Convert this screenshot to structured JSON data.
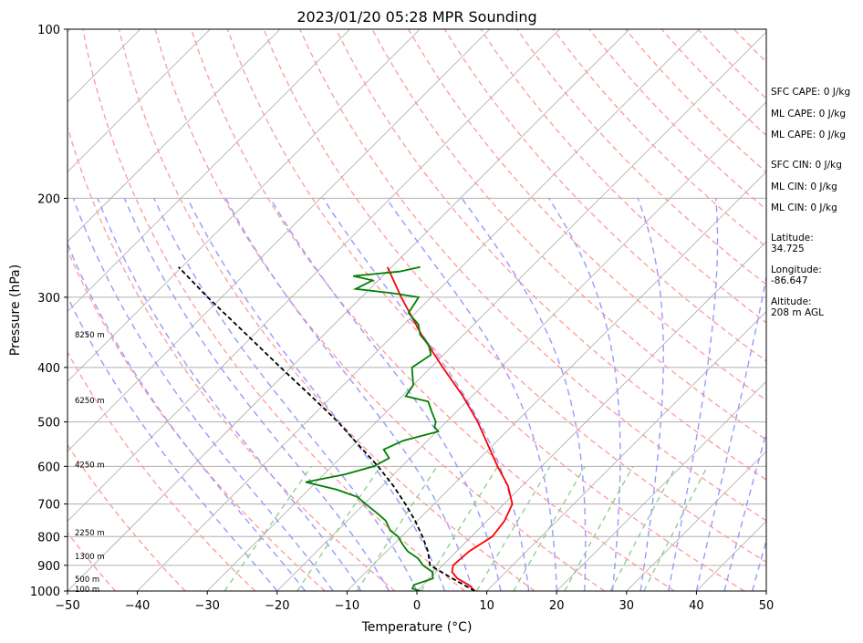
{
  "chart_data": {
    "type": "skew-t",
    "title": "2023/01/20 05:28 MPR Sounding",
    "xlabel": "Temperature (°C)",
    "ylabel": "Pressure (hPa)",
    "xlim": [
      -50,
      50
    ],
    "ylim": [
      1000,
      100
    ],
    "y_scale": "log",
    "grid": true,
    "x_ticks": [
      "−50",
      "−40",
      "−30",
      "−20",
      "−10",
      "0",
      "10",
      "20",
      "30",
      "40",
      "50"
    ],
    "x_tick_values": [
      -50,
      -40,
      -30,
      -20,
      -10,
      0,
      10,
      20,
      30,
      40,
      50
    ],
    "y_ticks": [
      "100",
      "200",
      "300",
      "400",
      "500",
      "600",
      "700",
      "800",
      "900",
      "1000"
    ],
    "y_tick_values": [
      100,
      200,
      300,
      400,
      500,
      600,
      700,
      800,
      900,
      1000
    ],
    "height_labels": [
      {
        "text": "8250 m",
        "p": 350
      },
      {
        "text": "6250 m",
        "p": 458
      },
      {
        "text": "4250 m",
        "p": 596
      },
      {
        "text": "2250 m",
        "p": 787
      },
      {
        "text": "1300 m",
        "p": 868
      },
      {
        "text": "500 m",
        "p": 953
      },
      {
        "text": "100 m",
        "p": 993
      }
    ],
    "series": [
      {
        "color": "#ff0000",
        "points": [
          [
            1000,
            8.3
          ],
          [
            975,
            6.5
          ],
          [
            950,
            4.0
          ],
          [
            925,
            2.3
          ],
          [
            900,
            1.5
          ],
          [
            850,
            1.8
          ],
          [
            800,
            3.0
          ],
          [
            750,
            2.5
          ],
          [
            700,
            1.2
          ],
          [
            650,
            -2.0
          ],
          [
            600,
            -6.3
          ],
          [
            550,
            -10.7
          ],
          [
            500,
            -15.5
          ],
          [
            450,
            -21.3
          ],
          [
            400,
            -28.3
          ],
          [
            350,
            -36.0
          ],
          [
            300,
            -44.3
          ],
          [
            265,
            -50.6
          ]
        ]
      },
      {
        "color": "#008000",
        "points": [
          [
            1000,
            0.5
          ],
          [
            990,
            -1.0
          ],
          [
            975,
            -1.3
          ],
          [
            950,
            0.5
          ],
          [
            925,
            -0.5
          ],
          [
            900,
            -2.8
          ],
          [
            875,
            -4.5
          ],
          [
            850,
            -7.0
          ],
          [
            825,
            -8.8
          ],
          [
            800,
            -10.5
          ],
          [
            780,
            -12.5
          ],
          [
            750,
            -14.5
          ],
          [
            730,
            -16.5
          ],
          [
            700,
            -19.8
          ],
          [
            680,
            -22.0
          ],
          [
            660,
            -26.0
          ],
          [
            640,
            -31.5
          ],
          [
            620,
            -27.0
          ],
          [
            600,
            -24.0
          ],
          [
            580,
            -23.0
          ],
          [
            560,
            -25.0
          ],
          [
            540,
            -23.5
          ],
          [
            520,
            -19.8
          ],
          [
            510,
            -21.0
          ],
          [
            500,
            -21.5
          ],
          [
            480,
            -23.5
          ],
          [
            460,
            -25.5
          ],
          [
            450,
            -29.5
          ],
          [
            430,
            -30.0
          ],
          [
            400,
            -32.7
          ],
          [
            380,
            -31.8
          ],
          [
            365,
            -33.5
          ],
          [
            350,
            -36.2
          ],
          [
            335,
            -38.0
          ],
          [
            320,
            -41.0
          ],
          [
            300,
            -41.8
          ],
          [
            295,
            -46.2
          ],
          [
            290,
            -52.0
          ],
          [
            280,
            -50.8
          ],
          [
            275,
            -54.2
          ],
          [
            270,
            -48.2
          ],
          [
            265,
            -45.9
          ]
        ]
      },
      {
        "color": "#000000",
        "dashed": true,
        "points": [
          [
            1000,
            8.3
          ],
          [
            950,
            3.3
          ],
          [
            900,
            -1.8
          ],
          [
            850,
            -4.1
          ],
          [
            800,
            -7.0
          ],
          [
            750,
            -10.3
          ],
          [
            700,
            -14.1
          ],
          [
            650,
            -18.4
          ],
          [
            600,
            -23.4
          ],
          [
            550,
            -29.2
          ],
          [
            500,
            -35.5
          ],
          [
            450,
            -43.0
          ],
          [
            400,
            -51.5
          ],
          [
            350,
            -61.0
          ],
          [
            300,
            -72.0
          ],
          [
            265,
            -80.5
          ]
        ]
      }
    ],
    "indices": {
      "sfc_cape": "SFC CAPE: 0 J/kg",
      "ml_cape": "ML CAPE: 0 J/kg",
      "ml_cape_2": "ML CAPE: 0 J/kg",
      "sfc_cin": "SFC CIN: 0 J/kg",
      "ml_cin": "ML CIN: 0 J/kg",
      "ml_cin_2": "ML CIN: 0 J/kg"
    },
    "location": {
      "lat_label": "Latitude:",
      "lat_value": "34.725",
      "lon_label": "Longitude:",
      "lon_value": "-86.647",
      "alt_label": "Altitude:",
      "alt_value": "208 m AGL"
    },
    "colors": {
      "temperature": "#ff0000",
      "dewpoint": "#008000",
      "parcel": "#000000",
      "dry_adiabat": "#ff9999",
      "moist_adiabat": "#9999ff",
      "mixing_ratio": "#88cc88",
      "isotherm": "#aaaaaa"
    }
  }
}
